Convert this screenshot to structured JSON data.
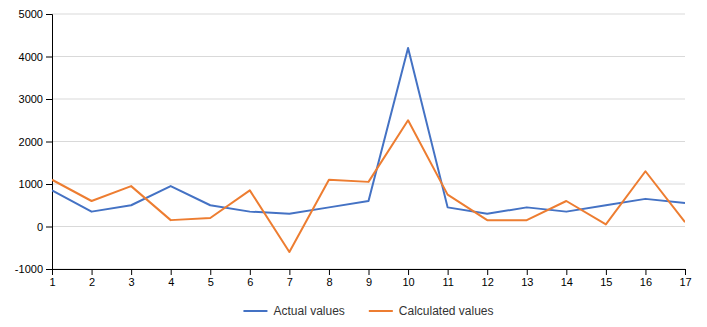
{
  "chart_data": {
    "type": "line",
    "x": [
      1,
      2,
      3,
      4,
      5,
      6,
      7,
      8,
      9,
      10,
      11,
      12,
      13,
      14,
      15,
      16,
      17
    ],
    "series": [
      {
        "name": "Actual values",
        "color": "#4472C4",
        "values": [
          850,
          350,
          500,
          950,
          500,
          350,
          300,
          450,
          600,
          4200,
          450,
          300,
          450,
          350,
          500,
          650,
          550
        ]
      },
      {
        "name": "Calculated values",
        "color": "#ED7D31",
        "values": [
          1100,
          600,
          950,
          150,
          200,
          850,
          -600,
          1100,
          1050,
          2500,
          750,
          150,
          150,
          600,
          50,
          1300,
          100
        ]
      }
    ],
    "xlim": [
      1,
      17
    ],
    "xticks": [
      1,
      2,
      3,
      4,
      5,
      6,
      7,
      8,
      9,
      10,
      11,
      12,
      13,
      14,
      15,
      16,
      17
    ],
    "ylim": [
      -1000,
      5000
    ],
    "yticks": [
      -1000,
      0,
      1000,
      2000,
      3000,
      4000,
      5000
    ],
    "grid": true,
    "legend": "bottom"
  }
}
